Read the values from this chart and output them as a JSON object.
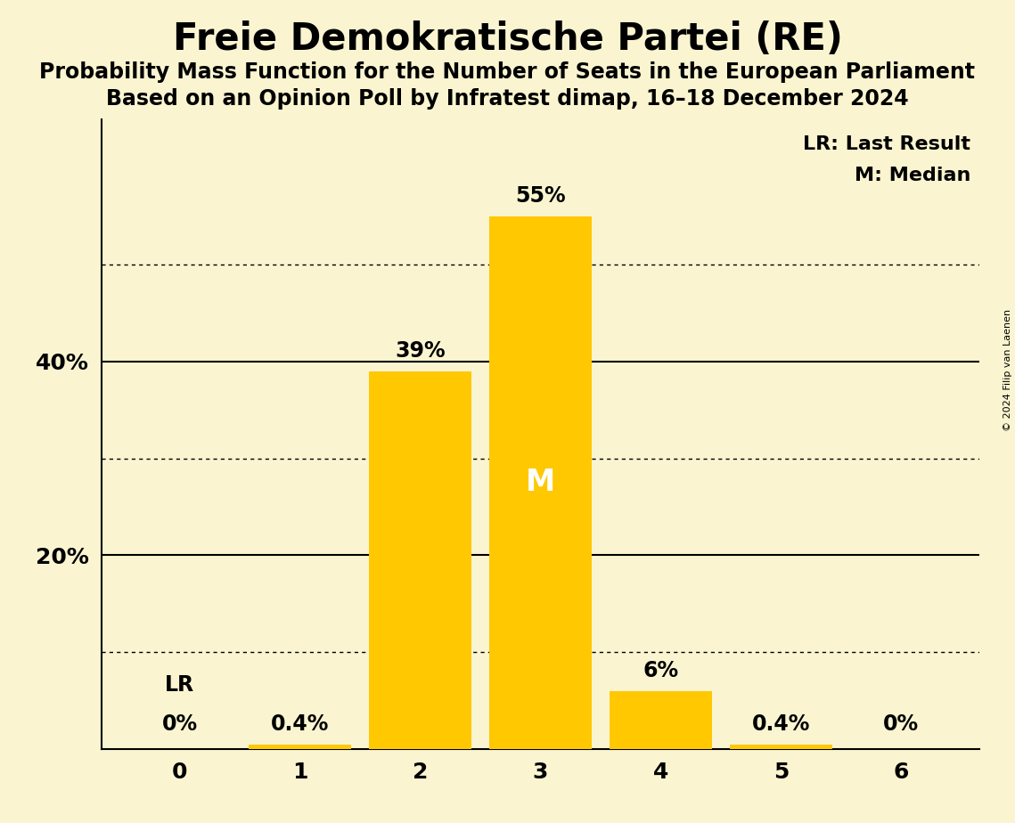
{
  "title": "Freie Demokratische Partei (RE)",
  "subtitle1": "Probability Mass Function for the Number of Seats in the European Parliament",
  "subtitle2": "Based on an Opinion Poll by Infratest dimap, 16–18 December 2024",
  "copyright": "© 2024 Filip van Laenen",
  "categories": [
    0,
    1,
    2,
    3,
    4,
    5,
    6
  ],
  "values": [
    0.0,
    0.4,
    39.0,
    55.0,
    6.0,
    0.4,
    0.0
  ],
  "labels": [
    "0%",
    "0.4%",
    "39%",
    "55%",
    "6%",
    "0.4%",
    "0%"
  ],
  "median_bar": 3,
  "last_result_bar": 0,
  "background_color": "#FAF5D0",
  "bar_color": "#FFC800",
  "median_label": "M",
  "lr_annotation": "LR",
  "legend_lr": "LR: Last Result",
  "legend_m": "M: Median",
  "ylim": [
    0,
    65
  ],
  "solid_yticks": [
    20,
    40
  ],
  "dotted_yticks": [
    10,
    30,
    50
  ],
  "title_fontsize": 30,
  "subtitle_fontsize": 17,
  "label_fontsize": 17,
  "tick_fontsize": 18,
  "legend_fontsize": 16,
  "median_fontsize": 24
}
